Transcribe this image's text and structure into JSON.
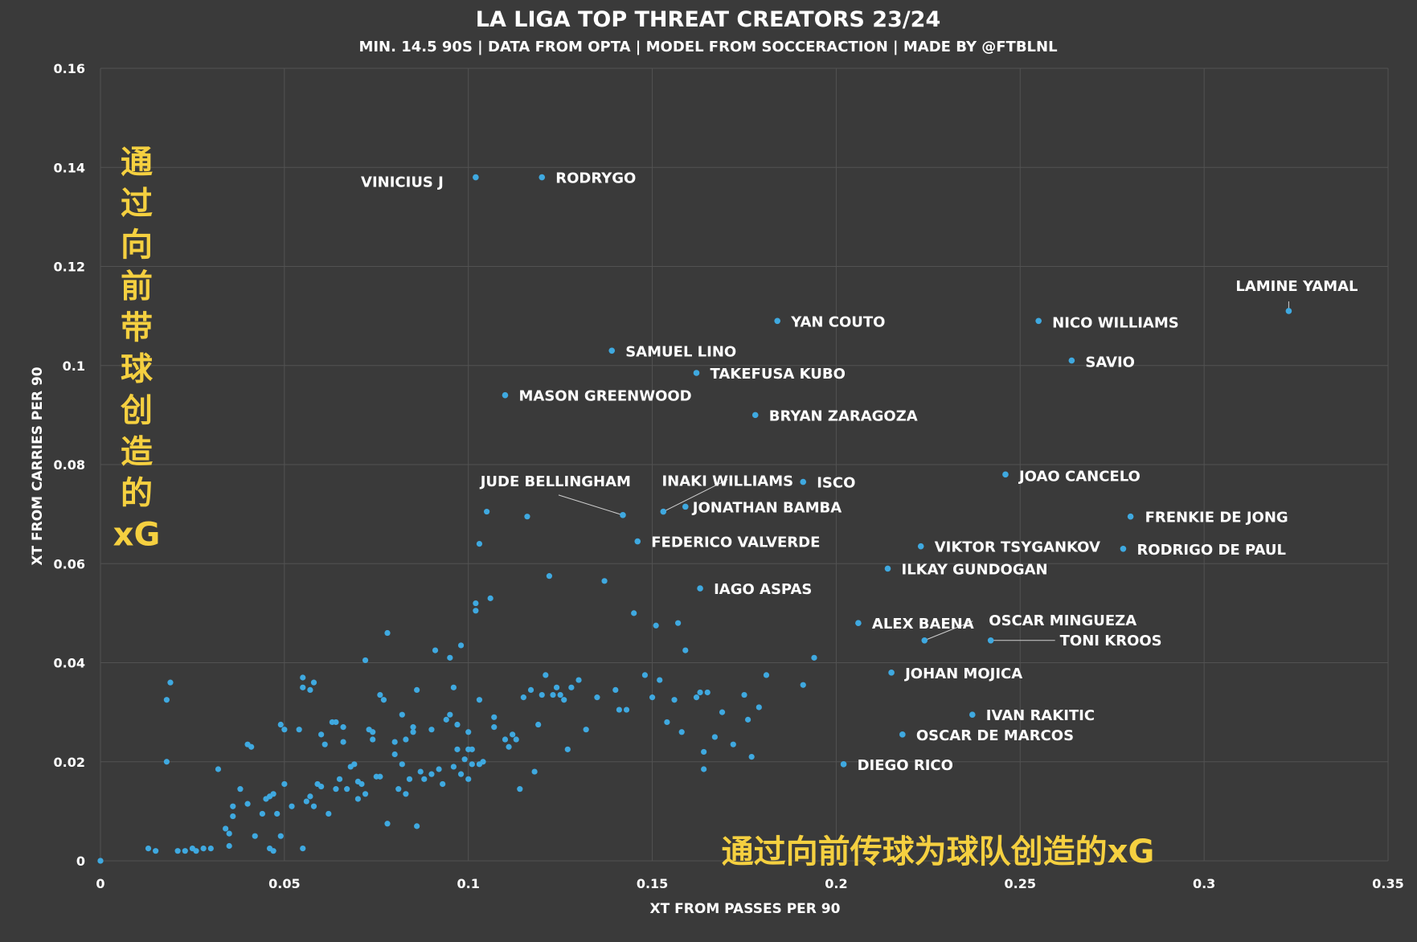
{
  "colors": {
    "background": "#3a3a3a",
    "grid": "#525252",
    "dot": "#3fa9e0",
    "text": "#ffffff",
    "annotation": "#f5d040"
  },
  "chart_data": {
    "type": "scatter",
    "title": "LA LIGA TOP THREAT CREATORS 23/24",
    "subtitle": "MIN. 14.5 90S | DATA FROM OPTA | MODEL FROM SOCCERACTION | MADE BY @FTBLNL",
    "xlabel": "XT FROM PASSES PER 90",
    "ylabel": "XT FROM CARRIES PER 90",
    "xlim": [
      0,
      0.35
    ],
    "ylim": [
      0,
      0.16
    ],
    "xticks": [
      0,
      0.05,
      0.1,
      0.15,
      0.2,
      0.25,
      0.3,
      0.35
    ],
    "xtick_labels": [
      "0",
      "0.05",
      "0.1",
      "0.15",
      "0.2",
      "0.25",
      "0.3",
      "0.35"
    ],
    "yticks": [
      0,
      0.02,
      0.04,
      0.06,
      0.08,
      0.1,
      0.12,
      0.14,
      0.16
    ],
    "ytick_labels": [
      "0",
      "0.02",
      "0.04",
      "0.06",
      "0.08",
      "0.1",
      "0.12",
      "0.14",
      "0.16"
    ],
    "grid": true,
    "annotations": {
      "y_axis_cn": "通过向前带球创造的xG",
      "x_axis_cn": "通过向前传球为球队创造的xG"
    },
    "labeled_points": [
      {
        "name": "VINICIUS J",
        "x": 0.102,
        "y": 0.138
      },
      {
        "name": "RODRYGO",
        "x": 0.12,
        "y": 0.138
      },
      {
        "name": "LAMINE YAMAL",
        "x": 0.323,
        "y": 0.111
      },
      {
        "name": "YAN COUTO",
        "x": 0.184,
        "y": 0.109
      },
      {
        "name": "NICO WILLIAMS",
        "x": 0.255,
        "y": 0.109
      },
      {
        "name": "SAMUEL LINO",
        "x": 0.139,
        "y": 0.103
      },
      {
        "name": "SAVIO",
        "x": 0.264,
        "y": 0.101
      },
      {
        "name": "TAKEFUSA KUBO",
        "x": 0.162,
        "y": 0.0985
      },
      {
        "name": "MASON GREENWOOD",
        "x": 0.11,
        "y": 0.094
      },
      {
        "name": "BRYAN ZARAGOZA",
        "x": 0.178,
        "y": 0.09
      },
      {
        "name": "INAKI WILLIAMS",
        "x": 0.153,
        "y": 0.0705
      },
      {
        "name": "JUDE BELLINGHAM",
        "x": 0.142,
        "y": 0.0698
      },
      {
        "name": "ISCO",
        "x": 0.191,
        "y": 0.0765
      },
      {
        "name": "JOAO CANCELO",
        "x": 0.246,
        "y": 0.078
      },
      {
        "name": "JONATHAN BAMBA",
        "x": 0.159,
        "y": 0.0715
      },
      {
        "name": "FRENKIE DE JONG",
        "x": 0.28,
        "y": 0.0695
      },
      {
        "name": "FEDERICO VALVERDE",
        "x": 0.146,
        "y": 0.0645
      },
      {
        "name": "VIKTOR TSYGANKOV",
        "x": 0.223,
        "y": 0.0635
      },
      {
        "name": "RODRIGO DE PAUL",
        "x": 0.278,
        "y": 0.063
      },
      {
        "name": "ILKAY GUNDOGAN",
        "x": 0.214,
        "y": 0.059
      },
      {
        "name": "IAGO ASPAS",
        "x": 0.163,
        "y": 0.055
      },
      {
        "name": "ALEX BAENA",
        "x": 0.206,
        "y": 0.048
      },
      {
        "name": "OSCAR MINGUEZA",
        "x": 0.224,
        "y": 0.0445
      },
      {
        "name": "TONI KROOS",
        "x": 0.242,
        "y": 0.0445
      },
      {
        "name": "JOHAN MOJICA",
        "x": 0.215,
        "y": 0.038
      },
      {
        "name": "IVAN RAKITIC",
        "x": 0.237,
        "y": 0.0295
      },
      {
        "name": "OSCAR DE MARCOS",
        "x": 0.218,
        "y": 0.0255
      },
      {
        "name": "DIEGO RICO",
        "x": 0.202,
        "y": 0.0195
      }
    ],
    "points": [
      [
        0,
        0
      ],
      [
        0,
        0
      ],
      [
        0.013,
        0.0025
      ],
      [
        0.015,
        0.002
      ],
      [
        0.018,
        0.0325
      ],
      [
        0.018,
        0.02
      ],
      [
        0.019,
        0.036
      ],
      [
        0.021,
        0.002
      ],
      [
        0.023,
        0.002
      ],
      [
        0.025,
        0.0025
      ],
      [
        0.026,
        0.002
      ],
      [
        0.028,
        0.0025
      ],
      [
        0.03,
        0.0025
      ],
      [
        0.032,
        0.0185
      ],
      [
        0.034,
        0.0065
      ],
      [
        0.035,
        0.003
      ],
      [
        0.035,
        0.0055
      ],
      [
        0.036,
        0.011
      ],
      [
        0.036,
        0.009
      ],
      [
        0.038,
        0.0145
      ],
      [
        0.04,
        0.0115
      ],
      [
        0.04,
        0.0235
      ],
      [
        0.041,
        0.023
      ],
      [
        0.042,
        0.005
      ],
      [
        0.044,
        0.0095
      ],
      [
        0.045,
        0.0125
      ],
      [
        0.046,
        0.0025
      ],
      [
        0.046,
        0.013
      ],
      [
        0.047,
        0.002
      ],
      [
        0.047,
        0.0135
      ],
      [
        0.048,
        0.0095
      ],
      [
        0.049,
        0.0275
      ],
      [
        0.049,
        0.005
      ],
      [
        0.05,
        0.0265
      ],
      [
        0.05,
        0.0155
      ],
      [
        0.052,
        0.011
      ],
      [
        0.054,
        0.0265
      ],
      [
        0.055,
        0.0025
      ],
      [
        0.055,
        0.035
      ],
      [
        0.055,
        0.037
      ],
      [
        0.056,
        0.012
      ],
      [
        0.057,
        0.0345
      ],
      [
        0.057,
        0.013
      ],
      [
        0.058,
        0.011
      ],
      [
        0.058,
        0.036
      ],
      [
        0.059,
        0.0155
      ],
      [
        0.06,
        0.015
      ],
      [
        0.06,
        0.0255
      ],
      [
        0.061,
        0.0235
      ],
      [
        0.062,
        0.0095
      ],
      [
        0.063,
        0.028
      ],
      [
        0.064,
        0.0145
      ],
      [
        0.064,
        0.028
      ],
      [
        0.065,
        0.0165
      ],
      [
        0.066,
        0.024
      ],
      [
        0.066,
        0.027
      ],
      [
        0.067,
        0.0145
      ],
      [
        0.068,
        0.019
      ],
      [
        0.069,
        0.0195
      ],
      [
        0.07,
        0.0125
      ],
      [
        0.07,
        0.016
      ],
      [
        0.071,
        0.0155
      ],
      [
        0.072,
        0.0405
      ],
      [
        0.072,
        0.0135
      ],
      [
        0.073,
        0.0265
      ],
      [
        0.074,
        0.026
      ],
      [
        0.074,
        0.0245
      ],
      [
        0.075,
        0.017
      ],
      [
        0.076,
        0.017
      ],
      [
        0.076,
        0.0335
      ],
      [
        0.077,
        0.0325
      ],
      [
        0.078,
        0.046
      ],
      [
        0.078,
        0.0075
      ],
      [
        0.08,
        0.0215
      ],
      [
        0.08,
        0.024
      ],
      [
        0.081,
        0.0145
      ],
      [
        0.082,
        0.0195
      ],
      [
        0.082,
        0.0295
      ],
      [
        0.083,
        0.0245
      ],
      [
        0.083,
        0.0135
      ],
      [
        0.084,
        0.0165
      ],
      [
        0.085,
        0.027
      ],
      [
        0.085,
        0.026
      ],
      [
        0.086,
        0.007
      ],
      [
        0.086,
        0.0345
      ],
      [
        0.087,
        0.018
      ],
      [
        0.088,
        0.0165
      ],
      [
        0.09,
        0.0265
      ],
      [
        0.09,
        0.0175
      ],
      [
        0.091,
        0.0425
      ],
      [
        0.092,
        0.0185
      ],
      [
        0.093,
        0.0155
      ],
      [
        0.094,
        0.0285
      ],
      [
        0.095,
        0.041
      ],
      [
        0.095,
        0.0295
      ],
      [
        0.096,
        0.019
      ],
      [
        0.096,
        0.035
      ],
      [
        0.097,
        0.0275
      ],
      [
        0.097,
        0.0225
      ],
      [
        0.098,
        0.0435
      ],
      [
        0.098,
        0.0175
      ],
      [
        0.099,
        0.0205
      ],
      [
        0.1,
        0.0225
      ],
      [
        0.1,
        0.0165
      ],
      [
        0.1,
        0.026
      ],
      [
        0.101,
        0.0225
      ],
      [
        0.101,
        0.0195
      ],
      [
        0.102,
        0.0505
      ],
      [
        0.102,
        0.052
      ],
      [
        0.103,
        0.064
      ],
      [
        0.103,
        0.0325
      ],
      [
        0.103,
        0.0195
      ],
      [
        0.104,
        0.02
      ],
      [
        0.105,
        0.0705
      ],
      [
        0.106,
        0.053
      ],
      [
        0.107,
        0.029
      ],
      [
        0.107,
        0.027
      ],
      [
        0.11,
        0.0245
      ],
      [
        0.111,
        0.023
      ],
      [
        0.112,
        0.0255
      ],
      [
        0.113,
        0.0245
      ],
      [
        0.114,
        0.0145
      ],
      [
        0.115,
        0.033
      ],
      [
        0.116,
        0.0695
      ],
      [
        0.117,
        0.0345
      ],
      [
        0.118,
        0.018
      ],
      [
        0.119,
        0.0275
      ],
      [
        0.12,
        0.0335
      ],
      [
        0.121,
        0.0375
      ],
      [
        0.122,
        0.0575
      ],
      [
        0.123,
        0.0335
      ],
      [
        0.124,
        0.035
      ],
      [
        0.125,
        0.0335
      ],
      [
        0.126,
        0.0325
      ],
      [
        0.127,
        0.0225
      ],
      [
        0.128,
        0.035
      ],
      [
        0.13,
        0.0365
      ],
      [
        0.132,
        0.0265
      ],
      [
        0.135,
        0.033
      ],
      [
        0.137,
        0.0565
      ],
      [
        0.14,
        0.0345
      ],
      [
        0.141,
        0.0305
      ],
      [
        0.143,
        0.0305
      ],
      [
        0.145,
        0.05
      ],
      [
        0.148,
        0.0375
      ],
      [
        0.15,
        0.033
      ],
      [
        0.151,
        0.0475
      ],
      [
        0.152,
        0.0365
      ],
      [
        0.154,
        0.028
      ],
      [
        0.156,
        0.0325
      ],
      [
        0.157,
        0.048
      ],
      [
        0.158,
        0.026
      ],
      [
        0.159,
        0.0425
      ],
      [
        0.162,
        0.033
      ],
      [
        0.163,
        0.034
      ],
      [
        0.164,
        0.022
      ],
      [
        0.164,
        0.0185
      ],
      [
        0.165,
        0.034
      ],
      [
        0.167,
        0.025
      ],
      [
        0.169,
        0.03
      ],
      [
        0.172,
        0.0235
      ],
      [
        0.175,
        0.0335
      ],
      [
        0.176,
        0.0285
      ],
      [
        0.177,
        0.021
      ],
      [
        0.179,
        0.031
      ],
      [
        0.181,
        0.0375
      ],
      [
        0.191,
        0.0355
      ],
      [
        0.194,
        0.041
      ]
    ]
  }
}
